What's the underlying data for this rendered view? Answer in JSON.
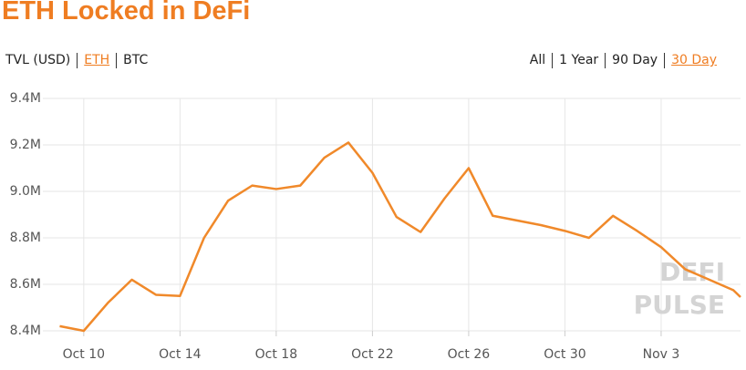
{
  "chart_data": {
    "type": "line",
    "title": "ETH Locked in DeFi",
    "units_tabs": [
      "TVL (USD)",
      "ETH",
      "BTC"
    ],
    "active_units_tab": 1,
    "range_tabs": [
      "All",
      "1 Year",
      "90 Day",
      "30 Day"
    ],
    "active_range_tab": 3,
    "watermark": [
      "DEFI",
      "PULSE"
    ],
    "x": [
      0,
      1,
      2,
      3,
      4,
      5,
      6,
      7,
      8,
      9,
      10,
      11,
      12,
      13,
      14,
      15,
      16,
      17,
      18,
      19,
      20,
      21,
      22,
      23,
      24,
      25,
      26,
      27,
      28,
      28.3
    ],
    "series": [
      {
        "name": "ETH",
        "color": "#f0892a",
        "values": [
          8420000,
          8400000,
          8520000,
          8620000,
          8555000,
          8550000,
          8800000,
          8960000,
          9025000,
          9010000,
          9025000,
          9145000,
          9210000,
          9080000,
          8890000,
          8825000,
          8970000,
          9100000,
          8895000,
          8875000,
          8855000,
          8830000,
          8800000,
          8895000,
          8830000,
          8760000,
          8665000,
          8620000,
          8575000,
          8545000
        ]
      }
    ],
    "xlim": [
      -0.7,
      28.3
    ],
    "xticks": [
      {
        "value": 1,
        "label": "Oct 10"
      },
      {
        "value": 5,
        "label": "Oct 14"
      },
      {
        "value": 9,
        "label": "Oct 18"
      },
      {
        "value": 13,
        "label": "Oct 22"
      },
      {
        "value": 17,
        "label": "Oct 26"
      },
      {
        "value": 21,
        "label": "Oct 30"
      },
      {
        "value": 25,
        "label": "Nov 3"
      }
    ],
    "ylim": [
      8400000,
      9400000
    ],
    "yticks": [
      {
        "value": 8400000,
        "label": "8.4M"
      },
      {
        "value": 8600000,
        "label": "8.6M"
      },
      {
        "value": 8800000,
        "label": "8.8M"
      },
      {
        "value": 9000000,
        "label": "9.0M"
      },
      {
        "value": 9200000,
        "label": "9.2M"
      },
      {
        "value": 9400000,
        "label": "9.4M"
      }
    ],
    "grid": true
  }
}
